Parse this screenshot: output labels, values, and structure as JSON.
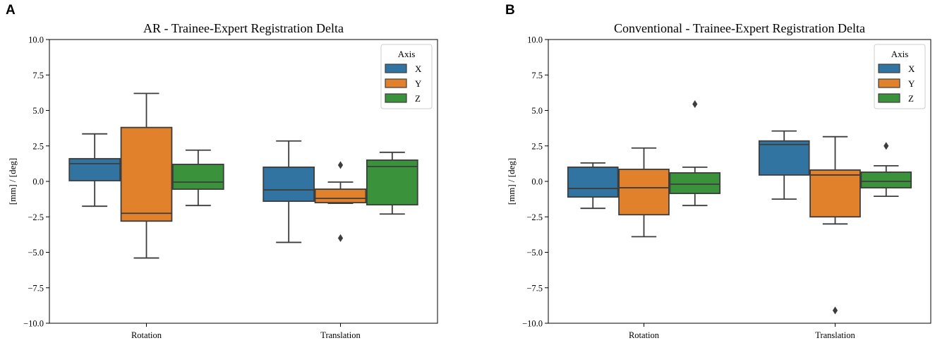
{
  "colors": {
    "X": "#3274a1",
    "Y": "#e1812c",
    "Z": "#3a923a",
    "edge": "#3d3d3d"
  },
  "chart_data": [
    {
      "type": "box",
      "panel": "A",
      "title": "AR - Trainee-Expert Registration Delta",
      "xlabel": "",
      "ylabel": "[mm] / [deg]",
      "ylim": [
        -10,
        10
      ],
      "yticks": [
        -10,
        -7.5,
        -5,
        -2.5,
        0,
        2.5,
        5,
        7.5,
        10
      ],
      "ytick_labels": [
        "−10.0",
        "−7.5",
        "−5.0",
        "−2.5",
        "0.0",
        "2.5",
        "5.0",
        "7.5",
        "10.0"
      ],
      "categories": [
        "Rotation",
        "Translation"
      ],
      "legend": {
        "title": "Axis",
        "entries": [
          "X",
          "Y",
          "Z"
        ],
        "placement": "top-right"
      },
      "series": [
        {
          "name": "X",
          "boxes": [
            {
              "whislo": -1.75,
              "q1": 0.05,
              "med": 1.25,
              "q3": 1.6,
              "whishi": 3.35,
              "fliers": []
            },
            {
              "whislo": -4.3,
              "q1": -1.4,
              "med": -0.6,
              "q3": 1.0,
              "whishi": 2.85,
              "fliers": []
            }
          ]
        },
        {
          "name": "Y",
          "boxes": [
            {
              "whislo": -5.4,
              "q1": -2.8,
              "med": -2.25,
              "q3": 3.8,
              "whishi": 6.2,
              "fliers": []
            },
            {
              "whislo": -1.55,
              "q1": -1.5,
              "med": -1.2,
              "q3": -0.55,
              "whishi": -0.05,
              "fliers": [
                1.15,
                -4.0
              ]
            }
          ]
        },
        {
          "name": "Z",
          "boxes": [
            {
              "whislo": -1.7,
              "q1": -0.55,
              "med": -0.05,
              "q3": 1.2,
              "whishi": 2.2,
              "fliers": []
            },
            {
              "whislo": -2.3,
              "q1": -1.65,
              "med": 1.05,
              "q3": 1.5,
              "whishi": 2.05,
              "fliers": []
            }
          ]
        }
      ]
    },
    {
      "type": "box",
      "panel": "B",
      "title": "Conventional - Trainee-Expert Registration Delta",
      "xlabel": "",
      "ylabel": "[mm] / [deg]",
      "ylim": [
        -10,
        10
      ],
      "yticks": [
        -10,
        -7.5,
        -5,
        -2.5,
        0,
        2.5,
        5,
        7.5,
        10
      ],
      "ytick_labels": [
        "−10.0",
        "−7.5",
        "−5.0",
        "−2.5",
        "0.0",
        "2.5",
        "5.0",
        "7.5",
        "10.0"
      ],
      "categories": [
        "Rotation",
        "Translation"
      ],
      "legend": {
        "title": "Axis",
        "entries": [
          "X",
          "Y",
          "Z"
        ],
        "placement": "top-right"
      },
      "series": [
        {
          "name": "X",
          "boxes": [
            {
              "whislo": -1.9,
              "q1": -1.1,
              "med": -0.5,
              "q3": 1.0,
              "whishi": 1.3,
              "fliers": []
            },
            {
              "whislo": -1.25,
              "q1": 0.45,
              "med": 2.6,
              "q3": 2.85,
              "whishi": 3.55,
              "fliers": []
            }
          ]
        },
        {
          "name": "Y",
          "boxes": [
            {
              "whislo": -3.9,
              "q1": -2.35,
              "med": -0.45,
              "q3": 0.85,
              "whishi": 2.35,
              "fliers": []
            },
            {
              "whislo": -3.0,
              "q1": -2.5,
              "med": 0.45,
              "q3": 0.8,
              "whishi": 3.15,
              "fliers": [
                -9.1
              ]
            }
          ]
        },
        {
          "name": "Z",
          "boxes": [
            {
              "whislo": -1.7,
              "q1": -0.85,
              "med": -0.2,
              "q3": 0.6,
              "whishi": 1.0,
              "fliers": [
                5.45
              ]
            },
            {
              "whislo": -1.05,
              "q1": -0.45,
              "med": 0.0,
              "q3": 0.65,
              "whishi": 1.1,
              "fliers": [
                2.5
              ]
            }
          ]
        }
      ]
    }
  ]
}
